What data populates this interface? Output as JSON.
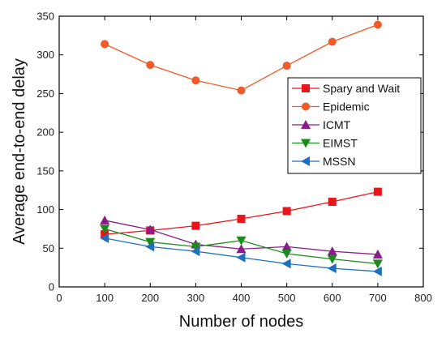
{
  "chart_data": {
    "type": "line",
    "xlabel": "Number of nodes",
    "ylabel": "Average end-to-end delay",
    "xlim": [
      0,
      800
    ],
    "ylim": [
      0,
      350
    ],
    "x_ticks": [
      0,
      100,
      200,
      300,
      400,
      500,
      600,
      700,
      800
    ],
    "y_ticks": [
      0,
      50,
      100,
      150,
      200,
      250,
      300,
      350
    ],
    "grid": false,
    "legend_position": "right",
    "series": [
      {
        "name": "Spary and Wait",
        "color": "#e8151b",
        "marker": "square",
        "x": [
          100,
          200,
          300,
          400,
          500,
          600,
          700
        ],
        "y": [
          68,
          73,
          79,
          88,
          98,
          110,
          123
        ]
      },
      {
        "name": "Epidemic",
        "color": "#f15a29",
        "marker": "circle",
        "x": [
          100,
          200,
          300,
          400,
          500,
          600,
          700
        ],
        "y": [
          314,
          287,
          267,
          254,
          286,
          317,
          339
        ]
      },
      {
        "name": "ICMT",
        "color": "#8b1a8b",
        "marker": "triangle-up",
        "x": [
          100,
          200,
          300,
          400,
          500,
          600,
          700
        ],
        "y": [
          86,
          74,
          55,
          49,
          52,
          46,
          42
        ]
      },
      {
        "name": "EIMST",
        "color": "#1a8a1a",
        "marker": "triangle-down",
        "x": [
          100,
          200,
          300,
          400,
          500,
          600,
          700
        ],
        "y": [
          75,
          58,
          52,
          60,
          43,
          36,
          30
        ]
      },
      {
        "name": "MSSN",
        "color": "#1f6fbf",
        "marker": "triangle-left",
        "x": [
          100,
          200,
          300,
          400,
          500,
          600,
          700
        ],
        "y": [
          63,
          52,
          46,
          38,
          30,
          24,
          20
        ]
      }
    ]
  }
}
